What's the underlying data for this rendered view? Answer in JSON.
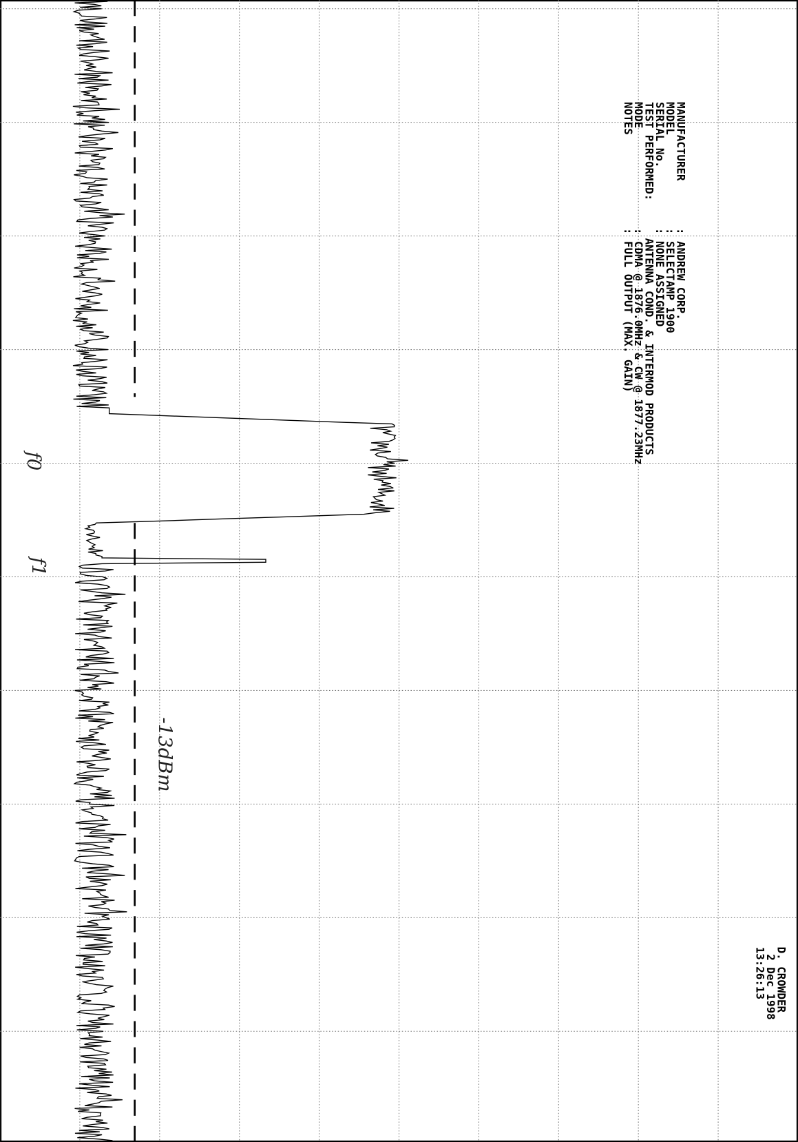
{
  "header": {
    "fields": [
      {
        "label": "MANUFACTURER",
        "value": ": ANDREW CORP."
      },
      {
        "label": "MODEL",
        "value": ": SELECTAMP 1900"
      },
      {
        "label": "SERIAL No.",
        "value": ": NONE ASSIGNED"
      },
      {
        "label": "TEST PERFORMED:",
        "value": "ANTENNA COND. & INTERMOD PRODUCTS"
      },
      {
        "label": "MODE",
        "value": ": CDMA @ 1876.0MHz & CW @ 1877.23MHz"
      },
      {
        "label": "NOTES",
        "value": ": FULL OUTPUT (MAX. GAIN)"
      }
    ]
  },
  "signature": [
    "D. CROWDER",
    "2 Dec 1998",
    "13:26:13"
  ],
  "annotations": {
    "f0": "f0",
    "f1": "f1",
    "limit": "-13dBm"
  }
}
